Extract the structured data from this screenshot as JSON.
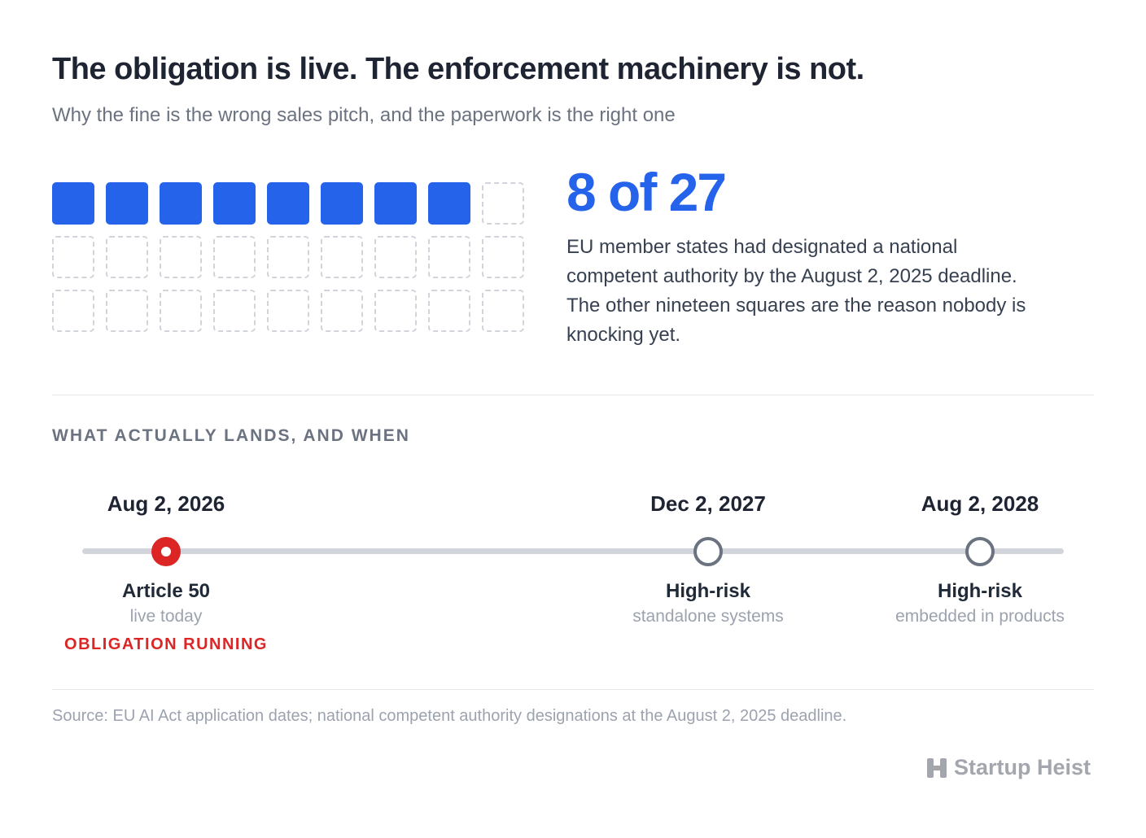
{
  "title": "The obligation is live. The enforcement machinery is not.",
  "subtitle": "Why the fine is the wrong sales pitch, and the paperwork is the right one",
  "chart_data": [
    {
      "type": "waffle",
      "total": 27,
      "filled": 8,
      "colors": {
        "filled": "#2563eb",
        "empty_border": "#d1d5db"
      },
      "headline": "8 of 27",
      "description": "EU member states had designated a national competent authority by the August 2, 2025 deadline. The other nineteen squares are the reason nobody is knocking yet."
    },
    {
      "type": "timeline",
      "title": "WHAT ACTUALLY LANDS, AND WHEN",
      "milestones": [
        {
          "date": "Aug 2, 2026",
          "label": "Article 50",
          "sublabel": "live today",
          "status": "OBLIGATION RUNNING",
          "active": true
        },
        {
          "date": "Dec 2, 2027",
          "label": "High-risk",
          "sublabel": "standalone systems",
          "active": false
        },
        {
          "date": "Aug 2, 2028",
          "label": "High-risk",
          "sublabel": "embedded in products",
          "active": false
        }
      ],
      "colors": {
        "active": "#dc2626",
        "inactive": "#6b7280",
        "track": "#d1d5db"
      }
    }
  ],
  "source": "Source: EU AI Act application dates; national competent authority designations at the August 2, 2025 deadline.",
  "brand": {
    "name": "Startup Heist",
    "icon": "h-logo-icon"
  }
}
